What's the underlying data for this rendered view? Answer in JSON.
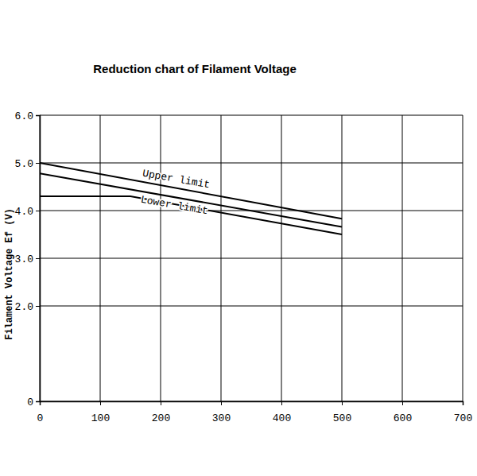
{
  "chart_data": {
    "type": "line",
    "title": "Reduction chart of Filament Voltage",
    "y_label": "Filament Voltage  Ef (V)",
    "xlim": [
      0,
      700
    ],
    "xticks": [
      0,
      100,
      200,
      300,
      400,
      500,
      600,
      700
    ],
    "ylim": [
      0,
      6
    ],
    "yticks": [
      0,
      {
        "value": 2,
        "label": "2.0"
      },
      {
        "value": 3,
        "label": "3.0"
      },
      {
        "value": 4,
        "label": "4.0"
      },
      {
        "value": 5,
        "label": "5.0"
      },
      {
        "value": 6,
        "label": "6.0"
      }
    ],
    "grid": true,
    "series": [
      {
        "x": [
          0,
          500
        ],
        "values": [
          5.0,
          3.83
        ],
        "color": "#000000"
      },
      {
        "x": [
          0,
          500
        ],
        "values": [
          4.78,
          3.66
        ],
        "color": "#000000"
      },
      {
        "x": [
          0,
          150,
          500
        ],
        "values": [
          4.3,
          4.3,
          3.5
        ],
        "color": "#000000"
      }
    ],
    "annotations": [
      {
        "text": "Upper limit",
        "x": 225,
        "y": 4.6
      },
      {
        "text": "Lower limit",
        "x": 222,
        "y": 4.05
      }
    ]
  }
}
